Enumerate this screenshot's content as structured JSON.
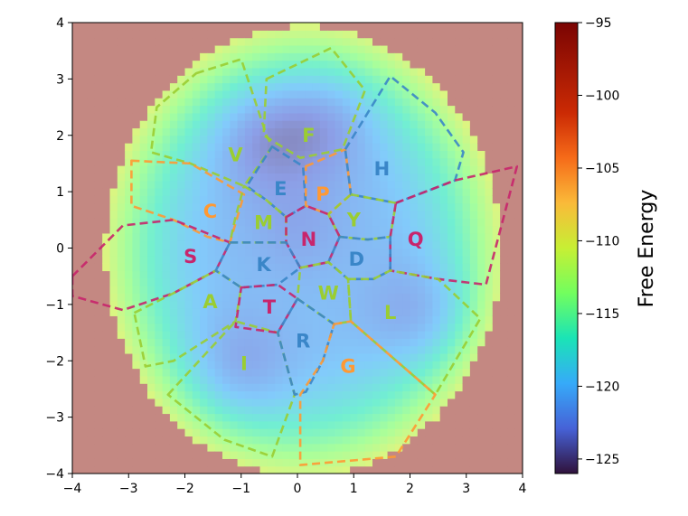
{
  "chart_data": {
    "type": "heatmap",
    "title": "",
    "xlabel": "",
    "ylabel": "",
    "xlim": [
      -4,
      4
    ],
    "ylim": [
      -4,
      4
    ],
    "x_ticks": [
      "−4",
      "−3",
      "−2",
      "−1",
      "0",
      "1",
      "2",
      "3",
      "4"
    ],
    "y_ticks": [
      "4",
      "3",
      "2",
      "1",
      "0",
      "−1",
      "−2",
      "−3",
      "−4"
    ],
    "colorbar": {
      "label": "Free Energy",
      "range": [
        -126,
        -95
      ],
      "ticks": [
        "−95",
        "−100",
        "−105",
        "−110",
        "−115",
        "−120",
        "−125"
      ]
    },
    "landscape": {
      "basins": [
        {
          "x": -0.6,
          "y": 2.0,
          "depth": 1.0
        },
        {
          "x": 0.5,
          "y": 2.3,
          "depth": 0.9
        },
        {
          "x": 2.3,
          "y": -1.2,
          "depth": 0.95
        },
        {
          "x": -1.1,
          "y": -2.2,
          "depth": 0.9
        },
        {
          "x": 0.0,
          "y": 0.4,
          "depth": 0.55
        }
      ]
    },
    "regions": [
      {
        "name": "F",
        "label_xy": [
          0.2,
          2.0
        ],
        "color": "#9acd32",
        "polygon": [
          [
            -0.55,
            3.0
          ],
          [
            0.6,
            3.55
          ],
          [
            1.2,
            2.8
          ],
          [
            0.8,
            1.75
          ],
          [
            0.05,
            1.6
          ],
          [
            -0.6,
            2.0
          ]
        ]
      },
      {
        "name": "V",
        "label_xy": [
          -1.1,
          1.65
        ],
        "color": "#9acd32",
        "polygon": [
          [
            -1.8,
            3.1
          ],
          [
            -1.0,
            3.35
          ],
          [
            -0.55,
            2.0
          ],
          [
            -0.45,
            1.8
          ],
          [
            -0.95,
            1.1
          ],
          [
            -1.9,
            1.5
          ],
          [
            -2.6,
            1.7
          ],
          [
            -2.5,
            2.5
          ]
        ]
      },
      {
        "name": "C",
        "label_xy": [
          -1.55,
          0.65
        ],
        "color": "#ff9933",
        "polygon": [
          [
            -2.95,
            1.55
          ],
          [
            -1.9,
            1.5
          ],
          [
            -0.95,
            0.95
          ],
          [
            -1.2,
            0.1
          ],
          [
            -1.6,
            0.2
          ],
          [
            -2.2,
            0.5
          ],
          [
            -2.95,
            0.75
          ]
        ]
      },
      {
        "name": "S",
        "label_xy": [
          -1.9,
          -0.15
        ],
        "color": "#c8256c",
        "polygon": [
          [
            -4.0,
            -0.5
          ],
          [
            -3.1,
            0.4
          ],
          [
            -2.2,
            0.5
          ],
          [
            -1.2,
            0.1
          ],
          [
            -1.45,
            -0.4
          ],
          [
            -2.2,
            -0.8
          ],
          [
            -3.1,
            -1.1
          ],
          [
            -4.0,
            -0.85
          ]
        ]
      },
      {
        "name": "A",
        "label_xy": [
          -1.55,
          -0.95
        ],
        "color": "#9acd32",
        "polygon": [
          [
            -2.9,
            -1.15
          ],
          [
            -2.2,
            -0.8
          ],
          [
            -1.45,
            -0.4
          ],
          [
            -1.0,
            -0.7
          ],
          [
            -1.1,
            -1.3
          ],
          [
            -2.2,
            -2.0
          ],
          [
            -2.7,
            -2.1
          ]
        ]
      },
      {
        "name": "I",
        "label_xy": [
          -0.95,
          -2.05
        ],
        "color": "#9acd32",
        "polygon": [
          [
            -2.3,
            -2.6
          ],
          [
            -1.1,
            -1.3
          ],
          [
            -0.35,
            -1.5
          ],
          [
            -0.05,
            -2.6
          ],
          [
            -0.45,
            -3.7
          ],
          [
            -1.3,
            -3.4
          ]
        ]
      },
      {
        "name": "E",
        "label_xy": [
          -0.3,
          1.05
        ],
        "color": "#3a86c8",
        "polygon": [
          [
            -0.45,
            1.8
          ],
          [
            0.1,
            1.45
          ],
          [
            0.15,
            0.75
          ],
          [
            -0.2,
            0.55
          ],
          [
            -0.55,
            0.85
          ],
          [
            -0.9,
            1.1
          ]
        ]
      },
      {
        "name": "P",
        "label_xy": [
          0.45,
          0.95
        ],
        "color": "#ff9933",
        "polygon": [
          [
            0.15,
            1.45
          ],
          [
            0.85,
            1.75
          ],
          [
            0.95,
            0.95
          ],
          [
            0.55,
            0.6
          ],
          [
            0.15,
            0.75
          ]
        ]
      },
      {
        "name": "H",
        "label_xy": [
          1.5,
          1.4
        ],
        "color": "#3a86c8",
        "polygon": [
          [
            0.85,
            1.75
          ],
          [
            1.65,
            3.05
          ],
          [
            2.45,
            2.4
          ],
          [
            2.95,
            1.7
          ],
          [
            2.8,
            1.2
          ],
          [
            1.75,
            0.8
          ],
          [
            0.95,
            0.95
          ]
        ]
      },
      {
        "name": "M",
        "label_xy": [
          -0.6,
          0.45
        ],
        "color": "#9acd32",
        "polygon": [
          [
            -0.95,
            1.1
          ],
          [
            -0.55,
            0.85
          ],
          [
            -0.2,
            0.55
          ],
          [
            -0.2,
            0.1
          ],
          [
            -1.2,
            0.1
          ],
          [
            -1.1,
            0.55
          ]
        ]
      },
      {
        "name": "Y",
        "label_xy": [
          1.0,
          0.5
        ],
        "color": "#9acd32",
        "polygon": [
          [
            0.95,
            0.95
          ],
          [
            1.75,
            0.8
          ],
          [
            1.65,
            0.2
          ],
          [
            1.25,
            0.15
          ],
          [
            0.75,
            0.2
          ],
          [
            0.55,
            0.6
          ]
        ]
      },
      {
        "name": "N",
        "label_xy": [
          0.2,
          0.15
        ],
        "color": "#c8256c",
        "polygon": [
          [
            -0.2,
            0.55
          ],
          [
            0.15,
            0.75
          ],
          [
            0.55,
            0.6
          ],
          [
            0.75,
            0.2
          ],
          [
            0.55,
            -0.25
          ],
          [
            0.05,
            -0.35
          ],
          [
            -0.2,
            0.1
          ]
        ]
      },
      {
        "name": "Q",
        "label_xy": [
          2.1,
          0.15
        ],
        "color": "#c8256c",
        "polygon": [
          [
            1.75,
            0.8
          ],
          [
            2.8,
            1.2
          ],
          [
            3.9,
            1.45
          ],
          [
            3.35,
            -0.65
          ],
          [
            2.5,
            -0.55
          ],
          [
            1.65,
            -0.4
          ],
          [
            1.65,
            0.2
          ]
        ]
      },
      {
        "name": "D",
        "label_xy": [
          1.05,
          -0.2
        ],
        "color": "#3a86c8",
        "polygon": [
          [
            0.75,
            0.2
          ],
          [
            1.25,
            0.15
          ],
          [
            1.65,
            0.2
          ],
          [
            1.65,
            -0.4
          ],
          [
            1.35,
            -0.55
          ],
          [
            0.9,
            -0.55
          ],
          [
            0.55,
            -0.25
          ]
        ]
      },
      {
        "name": "K",
        "label_xy": [
          -0.6,
          -0.3
        ],
        "color": "#3a86c8",
        "polygon": [
          [
            -1.2,
            0.1
          ],
          [
            -0.2,
            0.1
          ],
          [
            0.05,
            -0.35
          ],
          [
            -0.35,
            -0.65
          ],
          [
            -1.0,
            -0.7
          ],
          [
            -1.45,
            -0.4
          ]
        ]
      },
      {
        "name": "W",
        "label_xy": [
          0.55,
          -0.8
        ],
        "color": "#9acd32",
        "polygon": [
          [
            0.05,
            -0.35
          ],
          [
            0.55,
            -0.25
          ],
          [
            0.9,
            -0.55
          ],
          [
            0.95,
            -1.3
          ],
          [
            0.65,
            -1.35
          ],
          [
            0.0,
            -0.9
          ]
        ]
      },
      {
        "name": "L",
        "label_xy": [
          1.65,
          -1.15
        ],
        "color": "#9acd32",
        "polygon": [
          [
            0.9,
            -0.55
          ],
          [
            1.35,
            -0.55
          ],
          [
            1.65,
            -0.4
          ],
          [
            2.5,
            -0.55
          ],
          [
            3.25,
            -1.25
          ],
          [
            2.45,
            -2.6
          ],
          [
            0.95,
            -1.3
          ]
        ]
      },
      {
        "name": "T",
        "label_xy": [
          -0.5,
          -1.05
        ],
        "color": "#c8256c",
        "polygon": [
          [
            -1.0,
            -0.7
          ],
          [
            -0.35,
            -0.65
          ],
          [
            0.0,
            -0.9
          ],
          [
            -0.35,
            -1.5
          ],
          [
            -1.1,
            -1.4
          ]
        ]
      },
      {
        "name": "R",
        "label_xy": [
          0.1,
          -1.65
        ],
        "color": "#3a86c8",
        "polygon": [
          [
            0.0,
            -0.9
          ],
          [
            0.65,
            -1.35
          ],
          [
            0.45,
            -2.0
          ],
          [
            0.15,
            -2.55
          ],
          [
            -0.05,
            -2.6
          ],
          [
            -0.35,
            -1.5
          ]
        ]
      },
      {
        "name": "G",
        "label_xy": [
          0.9,
          -2.1
        ],
        "color": "#ff9933",
        "polygon": [
          [
            0.65,
            -1.35
          ],
          [
            0.95,
            -1.3
          ],
          [
            2.45,
            -2.6
          ],
          [
            1.75,
            -3.7
          ],
          [
            0.05,
            -3.85
          ],
          [
            0.05,
            -2.6
          ],
          [
            0.45,
            -2.0
          ]
        ]
      }
    ]
  }
}
